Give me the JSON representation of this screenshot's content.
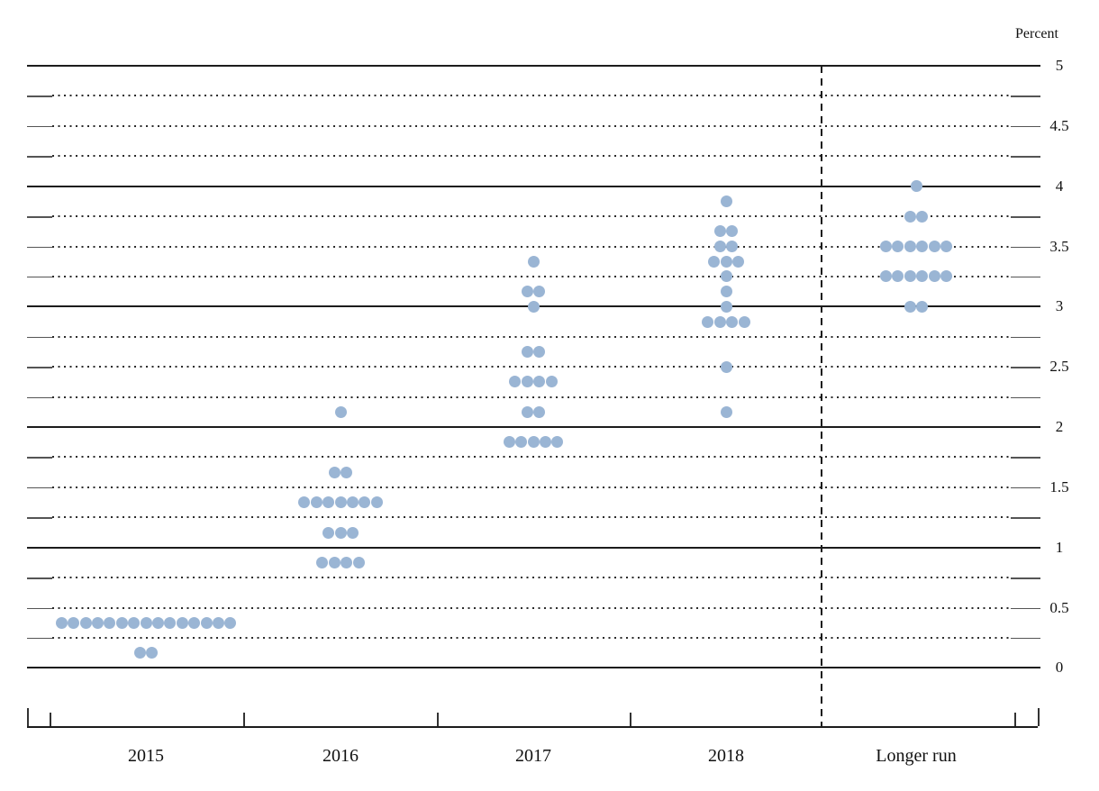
{
  "chart_data": {
    "type": "scatter",
    "subtype": "fomc-dot-plot",
    "title": "",
    "ylabel": "Percent",
    "xlabel": "",
    "categories": [
      "2015",
      "2016",
      "2017",
      "2018",
      "Longer run"
    ],
    "ylim": [
      0,
      5
    ],
    "gridline_step": 0.25,
    "grid": "solid integer lines, dotted quarter lines",
    "legend_position": "none",
    "separator_before_category": "Longer run",
    "dot_color": "#9ab5d4",
    "line_color": "#1c1c1c",
    "y_ticks": [
      {
        "value": 5,
        "label": "5"
      },
      {
        "value": 4.5,
        "label": "4.5"
      },
      {
        "value": 4,
        "label": "4"
      },
      {
        "value": 3.5,
        "label": "3.5"
      },
      {
        "value": 3,
        "label": "3"
      },
      {
        "value": 2.5,
        "label": "2.5"
      },
      {
        "value": 2,
        "label": "2"
      },
      {
        "value": 1.5,
        "label": "1.5"
      },
      {
        "value": 1,
        "label": "1"
      },
      {
        "value": 0.5,
        "label": "0.5"
      },
      {
        "value": 0,
        "label": "0"
      }
    ],
    "projections": [
      {
        "category": "2015",
        "dots": [
          {
            "rate": 0.375,
            "count": 15
          },
          {
            "rate": 0.125,
            "count": 2
          }
        ]
      },
      {
        "category": "2016",
        "dots": [
          {
            "rate": 2.125,
            "count": 1
          },
          {
            "rate": 1.625,
            "count": 2
          },
          {
            "rate": 1.375,
            "count": 7
          },
          {
            "rate": 1.125,
            "count": 3
          },
          {
            "rate": 0.875,
            "count": 4
          }
        ]
      },
      {
        "category": "2017",
        "dots": [
          {
            "rate": 3.375,
            "count": 1
          },
          {
            "rate": 3.125,
            "count": 2
          },
          {
            "rate": 3.0,
            "count": 1
          },
          {
            "rate": 2.625,
            "count": 2
          },
          {
            "rate": 2.375,
            "count": 4
          },
          {
            "rate": 2.125,
            "count": 2
          },
          {
            "rate": 1.875,
            "count": 5
          }
        ]
      },
      {
        "category": "2018",
        "dots": [
          {
            "rate": 3.875,
            "count": 1
          },
          {
            "rate": 3.625,
            "count": 2
          },
          {
            "rate": 3.5,
            "count": 2
          },
          {
            "rate": 3.375,
            "count": 3
          },
          {
            "rate": 3.25,
            "count": 1
          },
          {
            "rate": 3.125,
            "count": 1
          },
          {
            "rate": 3.0,
            "count": 1
          },
          {
            "rate": 2.875,
            "count": 4
          },
          {
            "rate": 2.5,
            "count": 1
          },
          {
            "rate": 2.125,
            "count": 1
          }
        ]
      },
      {
        "category": "Longer run",
        "dots": [
          {
            "rate": 4.0,
            "count": 1
          },
          {
            "rate": 3.75,
            "count": 2
          },
          {
            "rate": 3.5,
            "count": 6
          },
          {
            "rate": 3.25,
            "count": 6
          },
          {
            "rate": 3.0,
            "count": 2
          }
        ]
      }
    ]
  }
}
